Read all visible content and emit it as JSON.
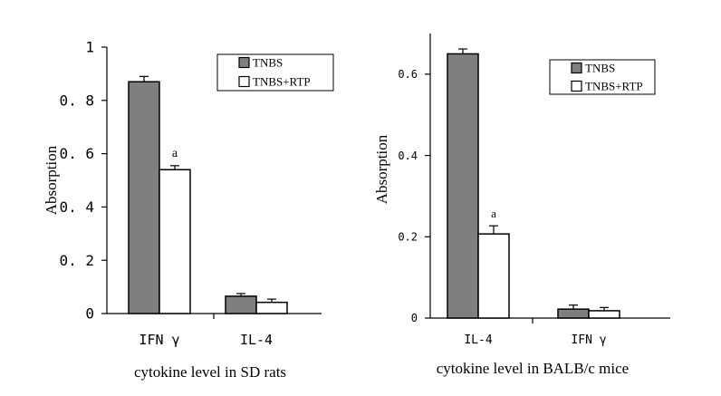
{
  "chart_data": [
    {
      "type": "bar",
      "title": "",
      "xlabel": "cytokine level in SD rats",
      "ylabel": "Absorption",
      "ylim": [
        0,
        1
      ],
      "yticks": [
        "0",
        "0. 2",
        "0. 4",
        "0. 6",
        "0. 8",
        "1"
      ],
      "categories": [
        "IFN γ",
        "IL-4"
      ],
      "series": [
        {
          "name": "TNBS",
          "values": [
            0.87,
            0.065
          ],
          "errors": [
            0.02,
            0.01
          ],
          "color": "#7f7f7f"
        },
        {
          "name": "TNBS+RTP",
          "values": [
            0.54,
            0.042
          ],
          "errors": [
            0.015,
            0.012
          ],
          "color": "#ffffff"
        }
      ],
      "annotations": [
        {
          "text": "a",
          "series": 1,
          "category": 0
        }
      ],
      "legend": "top-right",
      "grid": false
    },
    {
      "type": "bar",
      "title": "",
      "xlabel": "cytokine level in BALB/c mice",
      "ylabel": "Absorption",
      "ylim": [
        0,
        0.7
      ],
      "yticks": [
        "0",
        "0.2",
        "0.4",
        "0.6"
      ],
      "categories": [
        "IL-4",
        "IFN γ"
      ],
      "series": [
        {
          "name": "TNBS",
          "values": [
            0.65,
            0.022
          ],
          "errors": [
            0.012,
            0.01
          ],
          "color": "#7f7f7f"
        },
        {
          "name": "TNBS+RTP",
          "values": [
            0.207,
            0.018
          ],
          "errors": [
            0.02,
            0.008
          ],
          "color": "#ffffff"
        }
      ],
      "annotations": [
        {
          "text": "a",
          "series": 1,
          "category": 0
        }
      ],
      "legend": "top-right",
      "grid": false
    }
  ]
}
